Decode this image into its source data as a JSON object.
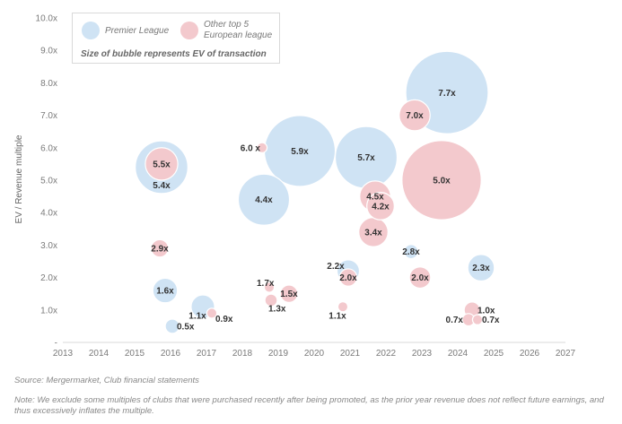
{
  "chart_data": {
    "type": "scatter",
    "subtype": "bubble",
    "xlabel": "",
    "ylabel": "EV / Revenue multiple",
    "x_ticks": [
      "2013",
      "2014",
      "2015",
      "2016",
      "2017",
      "2018",
      "2019",
      "2020",
      "2021",
      "2022",
      "2023",
      "2024",
      "2025",
      "2026",
      "2027"
    ],
    "xlim": [
      2013,
      2027
    ],
    "y_ticks": [
      "-",
      "1.0x",
      "2.0x",
      "3.0x",
      "4.0x",
      "5.0x",
      "6.0x",
      "7.0x",
      "8.0x",
      "9.0x",
      "10.0x"
    ],
    "ylim": [
      0,
      10
    ],
    "legend": {
      "premier": "Premier League",
      "other": "Other top 5 European league",
      "note": "Size of bubble represents EV of transaction"
    },
    "colors": {
      "premier": "#cfe3f4",
      "other": "#f3c9cd",
      "text": "#333333",
      "grid": "#d9d9d9"
    },
    "series": [
      {
        "name": "Premier League",
        "points": [
          {
            "x": 2015.75,
            "y": 5.4,
            "size": 5.5,
            "label": "5.4x"
          },
          {
            "x": 2015.85,
            "y": 1.6,
            "size": 1.2,
            "label": "1.6x"
          },
          {
            "x": 2016.05,
            "y": 0.5,
            "size": 0.4,
            "label": "0.5x"
          },
          {
            "x": 2016.9,
            "y": 1.1,
            "size": 1.1,
            "label": "1.1x"
          },
          {
            "x": 2018.6,
            "y": 4.4,
            "size": 5.2,
            "label": "4.4x"
          },
          {
            "x": 2019.6,
            "y": 5.9,
            "size": 10.0,
            "label": "5.9x"
          },
          {
            "x": 2020.95,
            "y": 2.2,
            "size": 1.0,
            "label": "2.2x"
          },
          {
            "x": 2021.45,
            "y": 5.7,
            "size": 7.6,
            "label": "5.7x"
          },
          {
            "x": 2022.7,
            "y": 2.8,
            "size": 0.4,
            "label": "2.8x"
          },
          {
            "x": 2023.7,
            "y": 7.7,
            "size": 13.5,
            "label": "7.7x"
          },
          {
            "x": 2024.65,
            "y": 2.3,
            "size": 1.4,
            "label": "2.3x"
          }
        ]
      },
      {
        "name": "Other top 5 European league",
        "points": [
          {
            "x": 2015.7,
            "y": 2.9,
            "size": 0.6,
            "label": "2.9x"
          },
          {
            "x": 2015.75,
            "y": 5.5,
            "size": 2.1,
            "label": "5.5x"
          },
          {
            "x": 2017.15,
            "y": 0.9,
            "size": 0.2,
            "label": "0.9x"
          },
          {
            "x": 2018.8,
            "y": 1.3,
            "size": 0.3,
            "label": "1.3x"
          },
          {
            "x": 2018.75,
            "y": 1.7,
            "size": 0.2,
            "label": "1.7x"
          },
          {
            "x": 2019.3,
            "y": 1.5,
            "size": 0.6,
            "label": "1.5x"
          },
          {
            "x": 2018.55,
            "y": 6.0,
            "size": 0.2,
            "label": "6.0 x"
          },
          {
            "x": 2020.8,
            "y": 1.1,
            "size": 0.2,
            "label": "1.1x"
          },
          {
            "x": 2020.95,
            "y": 2.0,
            "size": 0.6,
            "label": "2.0x"
          },
          {
            "x": 2021.65,
            "y": 3.4,
            "size": 1.7,
            "label": "3.4x"
          },
          {
            "x": 2021.7,
            "y": 4.5,
            "size": 1.9,
            "label": "4.5x"
          },
          {
            "x": 2021.85,
            "y": 4.2,
            "size": 1.5,
            "label": "4.2x"
          },
          {
            "x": 2022.8,
            "y": 7.0,
            "size": 1.9,
            "label": "7.0x"
          },
          {
            "x": 2022.95,
            "y": 2.0,
            "size": 0.9,
            "label": "2.0x"
          },
          {
            "x": 2023.55,
            "y": 5.0,
            "size": 12.5,
            "label": "5.0x"
          },
          {
            "x": 2024.3,
            "y": 0.7,
            "size": 0.3,
            "label": "0.7x"
          },
          {
            "x": 2024.4,
            "y": 1.0,
            "size": 0.5,
            "label": "1.0x"
          },
          {
            "x": 2024.55,
            "y": 0.7,
            "size": 0.2,
            "label": "0.7x"
          }
        ]
      }
    ]
  },
  "footer": {
    "source": "Source: Mergermarket, Club financial statements",
    "note": "Note: We exclude some multiples of clubs that were purchased recently after being promoted, as the prior year revenue does not reflect future earnings, and thus excessively inflates the multiple."
  }
}
